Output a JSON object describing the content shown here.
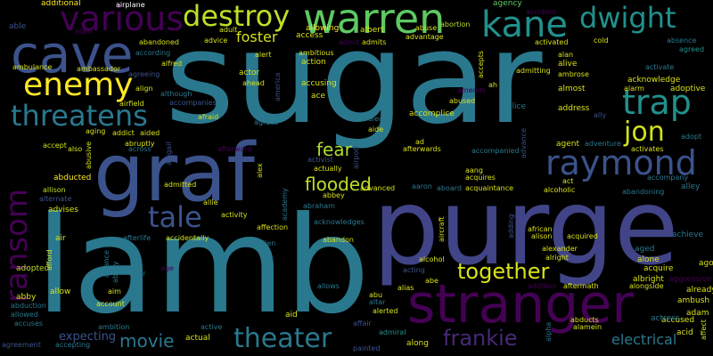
{
  "words": [
    {
      "text": "sugar",
      "color": "#2a788e"
    },
    {
      "text": "purge",
      "color": "#414487"
    },
    {
      "text": "lamb",
      "color": "#2a788e"
    },
    {
      "text": "stranger",
      "color": "#440154"
    },
    {
      "text": "graf",
      "color": "#3b528b"
    },
    {
      "text": "cave",
      "color": "#3b528b"
    },
    {
      "text": "warren",
      "color": "#5ec962"
    },
    {
      "text": "various",
      "color": "#440154"
    },
    {
      "text": "destroy",
      "color": "#bddf26"
    },
    {
      "text": "kane",
      "color": "#21918c"
    },
    {
      "text": "dwight",
      "color": "#21918c"
    },
    {
      "text": "enemy",
      "color": "#fde725"
    },
    {
      "text": "threatens",
      "color": "#2a788e"
    },
    {
      "text": "trap",
      "color": "#21918c"
    },
    {
      "text": "raymond",
      "color": "#3b528b"
    },
    {
      "text": "jon",
      "color": "#d2e21b"
    },
    {
      "text": "ransom",
      "color": "#440154"
    },
    {
      "text": "tale",
      "color": "#3b528b"
    },
    {
      "text": "together",
      "color": "#d8e219"
    },
    {
      "text": "theater",
      "color": "#2a788e"
    },
    {
      "text": "frankie",
      "color": "#482878"
    },
    {
      "text": "movie",
      "color": "#2a788e"
    },
    {
      "text": "fear",
      "color": "#addc30"
    },
    {
      "text": "flooded",
      "color": "#bddf26"
    },
    {
      "text": "foster",
      "color": "#d2e21b"
    },
    {
      "text": "expecting",
      "color": "#3b528b"
    },
    {
      "text": "electrical",
      "color": "#2a788e"
    },
    {
      "text": "additional",
      "color": "#fde725"
    },
    {
      "text": "airplane",
      "color": "#ffffff"
    },
    {
      "text": "agency",
      "color": "#5ec962"
    },
    {
      "text": "accident",
      "color": "#440154"
    },
    {
      "text": "alien",
      "color": "#440154"
    },
    {
      "text": "able",
      "color": "#3b528b"
    },
    {
      "text": "allowing",
      "color": "#fde725"
    },
    {
      "text": "abortion",
      "color": "#b5de2b"
    },
    {
      "text": "accept",
      "color": "#d2e21b"
    },
    {
      "text": "abducted",
      "color": "#fde725"
    },
    {
      "text": "allison",
      "color": "#c2df23"
    },
    {
      "text": "alternate",
      "color": "#3b528b"
    },
    {
      "text": "advises",
      "color": "#d8e219"
    },
    {
      "text": "air",
      "color": "#d8e219"
    },
    {
      "text": "adopted",
      "color": "#c2df23"
    },
    {
      "text": "abby",
      "color": "#d8e219"
    },
    {
      "text": "abduction",
      "color": "#2a788e"
    },
    {
      "text": "allowed",
      "color": "#2a788e"
    },
    {
      "text": "accuses",
      "color": "#2a788e"
    },
    {
      "text": "agreement",
      "color": "#3b528b"
    },
    {
      "text": "accepting",
      "color": "#2a788e"
    },
    {
      "text": "allow",
      "color": "#d8e219"
    },
    {
      "text": "aim",
      "color": "#d8e219"
    },
    {
      "text": "account",
      "color": "#d8e219"
    },
    {
      "text": "ambition",
      "color": "#2a788e"
    },
    {
      "text": "actual",
      "color": "#d8e219"
    },
    {
      "text": "active",
      "color": "#2a788e"
    },
    {
      "text": "aid",
      "color": "#d8e219"
    },
    {
      "text": "alerted",
      "color": "#d8e219"
    },
    {
      "text": "admiral",
      "color": "#21918c"
    },
    {
      "text": "along",
      "color": "#d8e219"
    },
    {
      "text": "affair",
      "color": "#3b528b"
    },
    {
      "text": "painted",
      "color": "#3b528b"
    },
    {
      "text": "abducts",
      "color": "#d8e219"
    },
    {
      "text": "alamein",
      "color": "#d8e219"
    },
    {
      "text": "accused",
      "color": "#d8e219"
    },
    {
      "text": "actress",
      "color": "#2a788e"
    },
    {
      "text": "acid",
      "color": "#d8e219"
    },
    {
      "text": "adam",
      "color": "#d8e219"
    },
    {
      "text": "ambush",
      "color": "#d8e219"
    },
    {
      "text": "already",
      "color": "#d8e219"
    },
    {
      "text": "aggressive",
      "color": "#440154"
    },
    {
      "text": "ago",
      "color": "#d8e219"
    },
    {
      "text": "albright",
      "color": "#d8e219"
    },
    {
      "text": "acquire",
      "color": "#d8e219"
    },
    {
      "text": "alone",
      "color": "#d8e219"
    },
    {
      "text": "aged",
      "color": "#2a788e"
    },
    {
      "text": "achieve",
      "color": "#2a788e"
    },
    {
      "text": "alley",
      "color": "#2a788e"
    },
    {
      "text": "accompany",
      "color": "#2a788e"
    },
    {
      "text": "abandoning",
      "color": "#2a788e"
    },
    {
      "text": "adopt",
      "color": "#2a788e"
    },
    {
      "text": "adoptive",
      "color": "#d8e219"
    },
    {
      "text": "alarm",
      "color": "#d8e219"
    },
    {
      "text": "acknowledge",
      "color": "#d8e219"
    },
    {
      "text": "activate",
      "color": "#2a788e"
    },
    {
      "text": "agreed",
      "color": "#21918c"
    },
    {
      "text": "absence",
      "color": "#2a788e"
    },
    {
      "text": "activates",
      "color": "#d8e219"
    },
    {
      "text": "adventure",
      "color": "#2a788e"
    },
    {
      "text": "agent",
      "color": "#d8e219"
    },
    {
      "text": "ally",
      "color": "#3b528b"
    },
    {
      "text": "address",
      "color": "#d8e219"
    },
    {
      "text": "almost",
      "color": "#d8e219"
    },
    {
      "text": "ambrose",
      "color": "#d8e219"
    },
    {
      "text": "alive",
      "color": "#d8e219"
    },
    {
      "text": "alan",
      "color": "#d8e219"
    },
    {
      "text": "activated",
      "color": "#d8e219"
    },
    {
      "text": "cold",
      "color": "#d8e219"
    },
    {
      "text": "advantage",
      "color": "#d8e219"
    },
    {
      "text": "abuse",
      "color": "#d8e219"
    },
    {
      "text": "albert",
      "color": "#d8e219"
    },
    {
      "text": "admits",
      "color": "#d8e219"
    },
    {
      "text": "access",
      "color": "#d8e219"
    },
    {
      "text": "admit",
      "color": "#440154"
    },
    {
      "text": "ambitious",
      "color": "#d8e219"
    },
    {
      "text": "action",
      "color": "#d8e219"
    },
    {
      "text": "ace",
      "color": "#d8e219"
    },
    {
      "text": "accusing",
      "color": "#d8e219"
    },
    {
      "text": "alert",
      "color": "#d8e219"
    },
    {
      "text": "actor",
      "color": "#d8e219"
    },
    {
      "text": "ahead",
      "color": "#d8e219"
    },
    {
      "text": "adult",
      "color": "#d8e219"
    },
    {
      "text": "advice",
      "color": "#d8e219"
    },
    {
      "text": "abandoned",
      "color": "#d8e219"
    },
    {
      "text": "according",
      "color": "#2a788e"
    },
    {
      "text": "alfred",
      "color": "#d8e219"
    },
    {
      "text": "agreeing",
      "color": "#3b528b"
    },
    {
      "text": "ambulance",
      "color": "#d8e219"
    },
    {
      "text": "ambassador",
      "color": "#d8e219"
    },
    {
      "text": "airfield",
      "color": "#d8e219"
    },
    {
      "text": "align",
      "color": "#d8e219"
    },
    {
      "text": "although",
      "color": "#2a788e"
    },
    {
      "text": "accompanies",
      "color": "#3b528b"
    },
    {
      "text": "afraid",
      "color": "#d8e219"
    },
    {
      "text": "agrees",
      "color": "#2a788e"
    },
    {
      "text": "alec",
      "color": "#2a788e"
    },
    {
      "text": "aide",
      "color": "#d8e219"
    },
    {
      "text": "accomplice",
      "color": "#d8e219"
    },
    {
      "text": "abused",
      "color": "#d8e219"
    },
    {
      "text": "alice",
      "color": "#2a788e"
    },
    {
      "text": "amends",
      "color": "#440154"
    },
    {
      "text": "ah",
      "color": "#d8e219"
    },
    {
      "text": "admitting",
      "color": "#d8e219"
    },
    {
      "text": "accepts",
      "color": "#d8e219"
    },
    {
      "text": "aging",
      "color": "#d8e219"
    },
    {
      "text": "addict",
      "color": "#d8e219"
    },
    {
      "text": "aided",
      "color": "#d8e219"
    },
    {
      "text": "abruptly",
      "color": "#d8e219"
    },
    {
      "text": "across",
      "color": "#2a788e"
    },
    {
      "text": "also",
      "color": "#d8e219"
    },
    {
      "text": "abusive",
      "color": "#d8e219"
    },
    {
      "text": "abigail",
      "color": "#3b528b"
    },
    {
      "text": "afterward",
      "color": "#440154"
    },
    {
      "text": "activist",
      "color": "#3b528b"
    },
    {
      "text": "actually",
      "color": "#d8e219"
    },
    {
      "text": "abbey",
      "color": "#d8e219"
    },
    {
      "text": "airport",
      "color": "#3b528b"
    },
    {
      "text": "afterwards",
      "color": "#d8e219"
    },
    {
      "text": "ad",
      "color": "#d8e219"
    },
    {
      "text": "aang",
      "color": "#d8e219"
    },
    {
      "text": "acquires",
      "color": "#d8e219"
    },
    {
      "text": "accompanied",
      "color": "#2a788e"
    },
    {
      "text": "advance",
      "color": "#3b528b"
    },
    {
      "text": "act",
      "color": "#d8e219"
    },
    {
      "text": "alcoholic",
      "color": "#d8e219"
    },
    {
      "text": "admitted",
      "color": "#d8e219"
    },
    {
      "text": "allie",
      "color": "#d8e219"
    },
    {
      "text": "alex",
      "color": "#d8e219"
    },
    {
      "text": "advanced",
      "color": "#d8e219"
    },
    {
      "text": "aaron",
      "color": "#2a788e"
    },
    {
      "text": "aboard",
      "color": "#2a788e"
    },
    {
      "text": "acquaintance",
      "color": "#d8e219"
    },
    {
      "text": "abraham",
      "color": "#2a788e"
    },
    {
      "text": "academy",
      "color": "#2a788e"
    },
    {
      "text": "activity",
      "color": "#d8e219"
    },
    {
      "text": "acknowledges",
      "color": "#2a788e"
    },
    {
      "text": "affection",
      "color": "#d8e219"
    },
    {
      "text": "abandon",
      "color": "#d8e219"
    },
    {
      "text": "african",
      "color": "#d8e219"
    },
    {
      "text": "alison",
      "color": "#d8e219"
    },
    {
      "text": "acquired",
      "color": "#d8e219"
    },
    {
      "text": "adding",
      "color": "#3b528b"
    },
    {
      "text": "aircraft",
      "color": "#d8e219"
    },
    {
      "text": "alexander",
      "color": "#d8e219"
    },
    {
      "text": "alright",
      "color": "#d8e219"
    },
    {
      "text": "afterlife",
      "color": "#2a788e"
    },
    {
      "text": "accidentally",
      "color": "#d8e219"
    },
    {
      "text": "allen",
      "color": "#2a788e"
    },
    {
      "text": "alcohol",
      "color": "#d8e219"
    },
    {
      "text": "acting",
      "color": "#3b528b"
    },
    {
      "text": "alias",
      "color": "#d8e219"
    },
    {
      "text": "abe",
      "color": "#d8e219"
    },
    {
      "text": "abu",
      "color": "#d8e219"
    },
    {
      "text": "altar",
      "color": "#2a788e"
    },
    {
      "text": "addition",
      "color": "#440154"
    },
    {
      "text": "aftermath",
      "color": "#d8e219"
    },
    {
      "text": "alongside",
      "color": "#d8e219"
    },
    {
      "text": "alpha",
      "color": "#2a788e"
    },
    {
      "text": "al",
      "color": "#440154"
    },
    {
      "text": "allows",
      "color": "#2a788e"
    },
    {
      "text": "alliance",
      "color": "#2a788e"
    },
    {
      "text": "ability",
      "color": "#2a788e"
    },
    {
      "text": "alter",
      "color": "#2a788e"
    },
    {
      "text": "age",
      "color": "#440154"
    },
    {
      "text": "afford",
      "color": "#d8e219"
    },
    {
      "text": "all",
      "color": "#2a788e"
    },
    {
      "text": "america",
      "color": "#3b528b"
    },
    {
      "text": "affect",
      "color": "#d8e219"
    }
  ]
}
